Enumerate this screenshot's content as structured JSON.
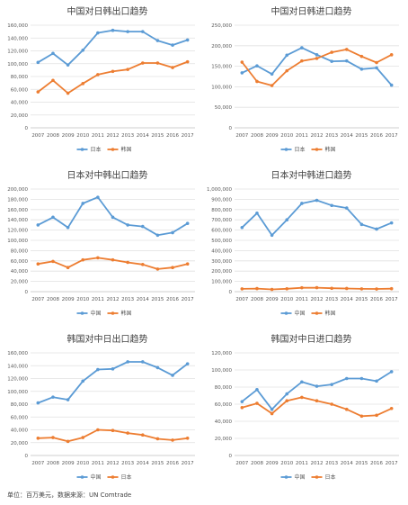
{
  "footer": "单位：百万美元，数据来源：UN Comtrade",
  "chart_data": [
    {
      "type": "line",
      "title": "中国对日韩出口趋势",
      "x": [
        "2007",
        "2008",
        "2009",
        "2010",
        "2011",
        "2012",
        "2013",
        "2014",
        "2015",
        "2016",
        "2017"
      ],
      "ylim": [
        0,
        160000
      ],
      "yticks": [
        "0",
        "20,000",
        "40,000",
        "60,000",
        "80,000",
        "100,000",
        "120,000",
        "140,000",
        "160,000"
      ],
      "grid": true,
      "legend_position": "bottom",
      "series": [
        {
          "name": "日本",
          "color": "#5B9BD5",
          "values": [
            102000,
            116000,
            98000,
            121000,
            148000,
            152000,
            150000,
            150000,
            136000,
            129000,
            137000
          ]
        },
        {
          "name": "韩国",
          "color": "#ED7D31",
          "values": [
            56000,
            74000,
            54000,
            69000,
            83000,
            88000,
            91000,
            101000,
            101000,
            94000,
            103000
          ]
        }
      ]
    },
    {
      "type": "line",
      "title": "中国对日韩进口趋势",
      "x": [
        "2007",
        "2008",
        "2009",
        "2010",
        "2011",
        "2012",
        "2013",
        "2014",
        "2015",
        "2016",
        "2017"
      ],
      "ylim": [
        0,
        250000
      ],
      "yticks": [
        "0",
        "50,000",
        "100,000",
        "150,000",
        "200,000",
        "250,000"
      ],
      "grid": true,
      "legend_position": "bottom",
      "series": [
        {
          "name": "日本",
          "color": "#5B9BD5",
          "values": [
            134000,
            151000,
            131000,
            177000,
            195000,
            178000,
            162000,
            163000,
            143000,
            146000,
            104000
          ]
        },
        {
          "name": "韩国",
          "color": "#ED7D31",
          "values": [
            160000,
            113000,
            103000,
            139000,
            163000,
            169000,
            184000,
            191000,
            174000,
            159000,
            178000
          ]
        }
      ]
    },
    {
      "type": "line",
      "title": "日本对中韩出口趋势",
      "x": [
        "2007",
        "2008",
        "2009",
        "2010",
        "2011",
        "2012",
        "2013",
        "2014",
        "2015",
        "2016",
        "2017"
      ],
      "ylim": [
        0,
        200000
      ],
      "yticks": [
        "0",
        "20,000",
        "40,000",
        "60,000",
        "80,000",
        "100,000",
        "120,000",
        "140,000",
        "160,000",
        "180,000",
        "200,000"
      ],
      "grid": true,
      "legend_position": "bottom",
      "series": [
        {
          "name": "中国",
          "color": "#5B9BD5",
          "values": [
            130000,
            145000,
            125000,
            172000,
            184000,
            145000,
            130000,
            127000,
            110000,
            115000,
            133000
          ]
        },
        {
          "name": "韩国",
          "color": "#ED7D31",
          "values": [
            54000,
            59000,
            47000,
            62000,
            66000,
            62000,
            57000,
            53000,
            44000,
            47000,
            54000
          ]
        }
      ]
    },
    {
      "type": "line",
      "title": "日本对中韩进口趋势",
      "x": [
        "2007",
        "2008",
        "2009",
        "2010",
        "2011",
        "2012",
        "2013",
        "2014",
        "2015",
        "2016",
        "2017"
      ],
      "ylim": [
        0,
        1000000
      ],
      "yticks": [
        "0",
        "100,000",
        "200,000",
        "300,000",
        "400,000",
        "500,000",
        "600,000",
        "700,000",
        "800,000",
        "900,000",
        "1,000,000"
      ],
      "grid": true,
      "legend_position": "bottom",
      "series": [
        {
          "name": "中国",
          "color": "#5B9BD5",
          "values": [
            625000,
            765000,
            550000,
            700000,
            860000,
            890000,
            840000,
            815000,
            655000,
            610000,
            670000
          ]
        },
        {
          "name": "韩国",
          "color": "#ED7D31",
          "values": [
            27000,
            30000,
            22000,
            28000,
            38000,
            39000,
            33000,
            31000,
            27000,
            26000,
            29000
          ]
        }
      ]
    },
    {
      "type": "line",
      "title": "韩国对中日出口趋势",
      "x": [
        "2007",
        "2008",
        "2009",
        "2010",
        "2011",
        "2012",
        "2013",
        "2014",
        "2015",
        "2016",
        "2017"
      ],
      "ylim": [
        0,
        160000
      ],
      "yticks": [
        "0",
        "20,000",
        "40,000",
        "60,000",
        "80,000",
        "100,000",
        "120,000",
        "140,000",
        "160,000"
      ],
      "grid": true,
      "legend_position": "bottom",
      "series": [
        {
          "name": "中国",
          "color": "#5B9BD5",
          "values": [
            82000,
            91000,
            87000,
            116000,
            134000,
            135000,
            146000,
            146000,
            137000,
            125000,
            143000
          ]
        },
        {
          "name": "日本",
          "color": "#ED7D31",
          "values": [
            27000,
            28000,
            22000,
            28000,
            40000,
            39000,
            35000,
            32000,
            26000,
            24000,
            27000
          ]
        }
      ]
    },
    {
      "type": "line",
      "title": "韩国对中日进口趋势",
      "x": [
        "2007",
        "2008",
        "2009",
        "2010",
        "2011",
        "2012",
        "2013",
        "2014",
        "2015",
        "2016",
        "2017"
      ],
      "ylim": [
        0,
        120000
      ],
      "yticks": [
        "0",
        "20,000",
        "40,000",
        "60,000",
        "80,000",
        "100,000",
        "120,000"
      ],
      "grid": true,
      "legend_position": "bottom",
      "series": [
        {
          "name": "中国",
          "color": "#5B9BD5",
          "values": [
            63000,
            77000,
            54000,
            72000,
            86000,
            81000,
            83000,
            90000,
            90000,
            87000,
            98000
          ]
        },
        {
          "name": "日本",
          "color": "#ED7D31",
          "values": [
            56000,
            61000,
            49000,
            64000,
            68000,
            64000,
            60000,
            54000,
            46000,
            47000,
            55000
          ]
        }
      ]
    }
  ]
}
